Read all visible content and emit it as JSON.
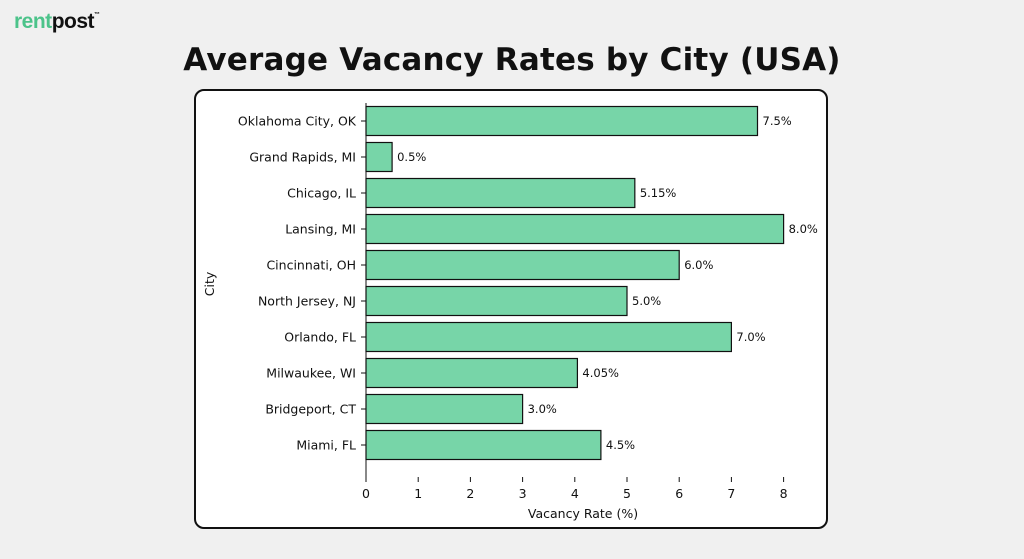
{
  "brand": {
    "logo_part1": "rent",
    "logo_part2": "post",
    "tm": "™"
  },
  "chart_data": {
    "type": "bar",
    "orientation": "horizontal",
    "title": "Average Vacancy Rates by City (USA)",
    "xlabel": "Vacancy Rate (%)",
    "ylabel": "City",
    "xlim": [
      0,
      8.4
    ],
    "xticks": [
      0,
      1,
      2,
      3,
      4,
      5,
      6,
      7,
      8
    ],
    "grid": false,
    "bar_color": "#77d5a8",
    "bar_edge_color": "#111111",
    "categories": [
      "Oklahoma City, OK",
      "Grand Rapids, MI",
      "Chicago, IL",
      "Lansing, MI",
      "Cincinnati, OH",
      "North Jersey, NJ",
      "Orlando, FL",
      "Milwaukee, WI",
      "Bridgeport, CT",
      "Miami, FL"
    ],
    "values": [
      7.5,
      0.5,
      5.15,
      8.0,
      6.0,
      5.0,
      7.0,
      4.05,
      3.0,
      4.5
    ],
    "data_labels": [
      "7.5%",
      "0.5%",
      "5.15%",
      "8.0%",
      "6.0%",
      "5.0%",
      "7.0%",
      "4.05%",
      "3.0%",
      "4.5%"
    ]
  }
}
